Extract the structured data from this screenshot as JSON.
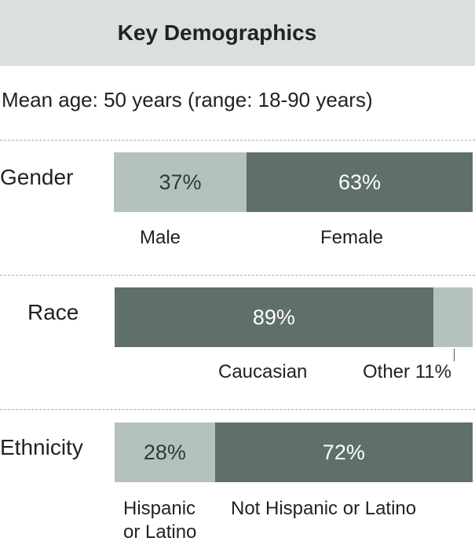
{
  "header": {
    "title": "Key Demographics"
  },
  "mean_age_text": "Mean age: 50 years (range: 18-90 years)",
  "colors": {
    "light": "#b4c1bd",
    "dark": "#5f6f6b",
    "header_bg": "#d9e0dd",
    "divider": "#9fb3ae"
  },
  "chart_data": [
    {
      "type": "bar",
      "subtype": "stacked-100",
      "row_label": "Gender",
      "segments": [
        {
          "category": "Male",
          "value": 37,
          "label": "37%",
          "shade": "light"
        },
        {
          "category": "Female",
          "value": 63,
          "label": "63%",
          "shade": "dark"
        }
      ]
    },
    {
      "type": "bar",
      "subtype": "stacked-100",
      "row_label": "Race",
      "segments": [
        {
          "category": "Caucasian",
          "value": 89,
          "label": "89%",
          "shade": "dark"
        },
        {
          "category": "Other",
          "value": 11,
          "label": "Other 11%",
          "shade": "light"
        }
      ]
    },
    {
      "type": "bar",
      "subtype": "stacked-100",
      "row_label": "Ethnicity",
      "segments": [
        {
          "category": "Hispanic or Latino",
          "category_lines": [
            "Hispanic",
            "or Latino"
          ],
          "value": 28,
          "label": "28%",
          "shade": "light"
        },
        {
          "category": "Not Hispanic or Latino",
          "value": 72,
          "label": "72%",
          "shade": "dark"
        }
      ]
    }
  ]
}
